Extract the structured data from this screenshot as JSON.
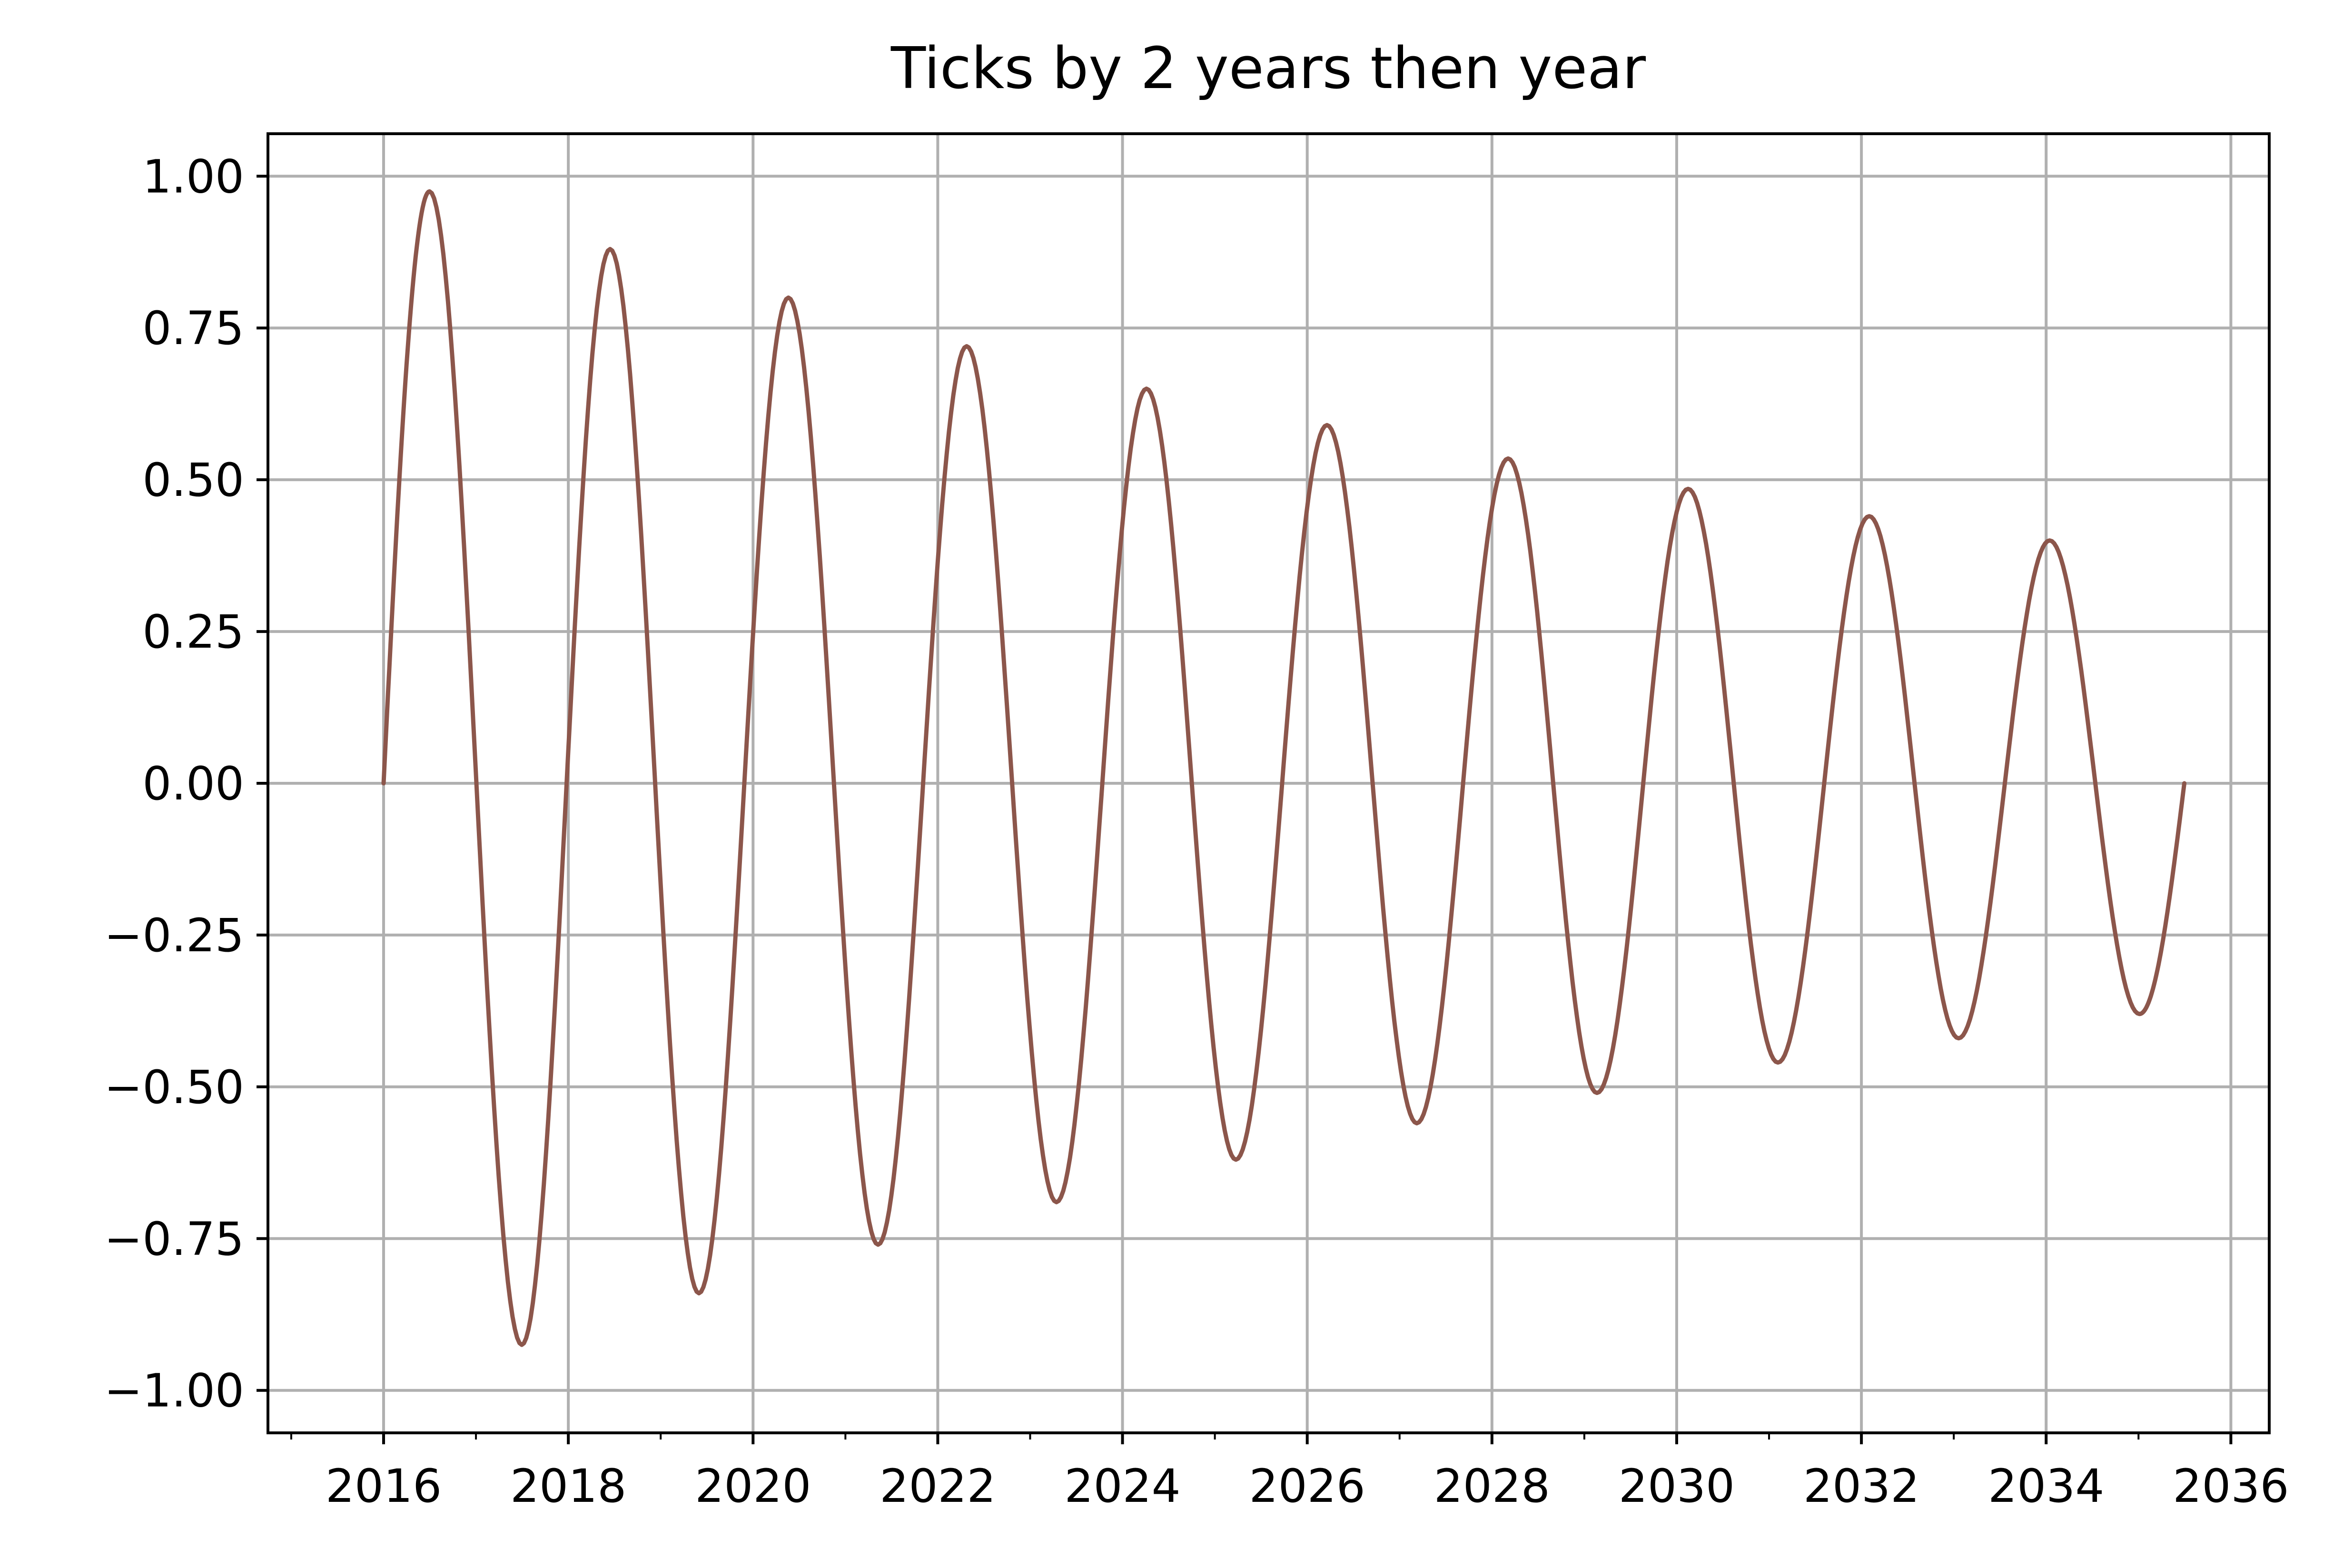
{
  "chart_data": {
    "type": "line",
    "title": "Ticks by 2 years then year",
    "xlabel": "",
    "ylabel": "",
    "x_range": [
      "2016-01-01",
      "2035-07-01"
    ],
    "xlim": [
      "2014-10-01",
      "2036-06-01"
    ],
    "ylim": [
      -1.07,
      1.07
    ],
    "x_ticks": [
      "2016",
      "2018",
      "2020",
      "2022",
      "2024",
      "2026",
      "2028",
      "2030",
      "2032",
      "2034",
      "2036"
    ],
    "x_minor_ticks": [
      "2015",
      "2017",
      "2019",
      "2021",
      "2023",
      "2025",
      "2027",
      "2029",
      "2031",
      "2033",
      "2035"
    ],
    "y_ticks": [
      {
        "value": 1.0,
        "label": "1.00"
      },
      {
        "value": 0.75,
        "label": "0.75"
      },
      {
        "value": 0.5,
        "label": "0.50"
      },
      {
        "value": 0.25,
        "label": "0.25"
      },
      {
        "value": 0.0,
        "label": "0.00"
      },
      {
        "value": -0.25,
        "label": "−0.25"
      },
      {
        "value": -0.5,
        "label": "−0.50"
      },
      {
        "value": -0.75,
        "label": "−0.75"
      },
      {
        "value": -1.0,
        "label": "−1.00"
      }
    ],
    "grid": true,
    "series": [
      {
        "color": "#8c564b",
        "points": [
          [
            "2016-01-01",
            0.0
          ],
          [
            "2016-07-01",
            0.975
          ],
          [
            "2017-07-01",
            -0.925
          ],
          [
            "2018-06-15",
            0.88
          ],
          [
            "2019-06-01",
            -0.84
          ],
          [
            "2020-05-20",
            0.8
          ],
          [
            "2021-05-10",
            -0.76
          ],
          [
            "2022-04-25",
            0.72
          ],
          [
            "2023-04-15",
            -0.69
          ],
          [
            "2024-04-05",
            0.65
          ],
          [
            "2025-03-25",
            -0.62
          ],
          [
            "2026-03-20",
            0.59
          ],
          [
            "2027-03-10",
            -0.56
          ],
          [
            "2028-03-05",
            0.535
          ],
          [
            "2029-02-20",
            -0.51
          ],
          [
            "2030-02-15",
            0.485
          ],
          [
            "2031-02-05",
            -0.46
          ],
          [
            "2032-02-01",
            0.44
          ],
          [
            "2033-01-20",
            -0.42
          ],
          [
            "2034-01-15",
            0.4
          ],
          [
            "2035-01-05",
            -0.38
          ],
          [
            "2035-07-01",
            0.0
          ]
        ]
      }
    ]
  }
}
